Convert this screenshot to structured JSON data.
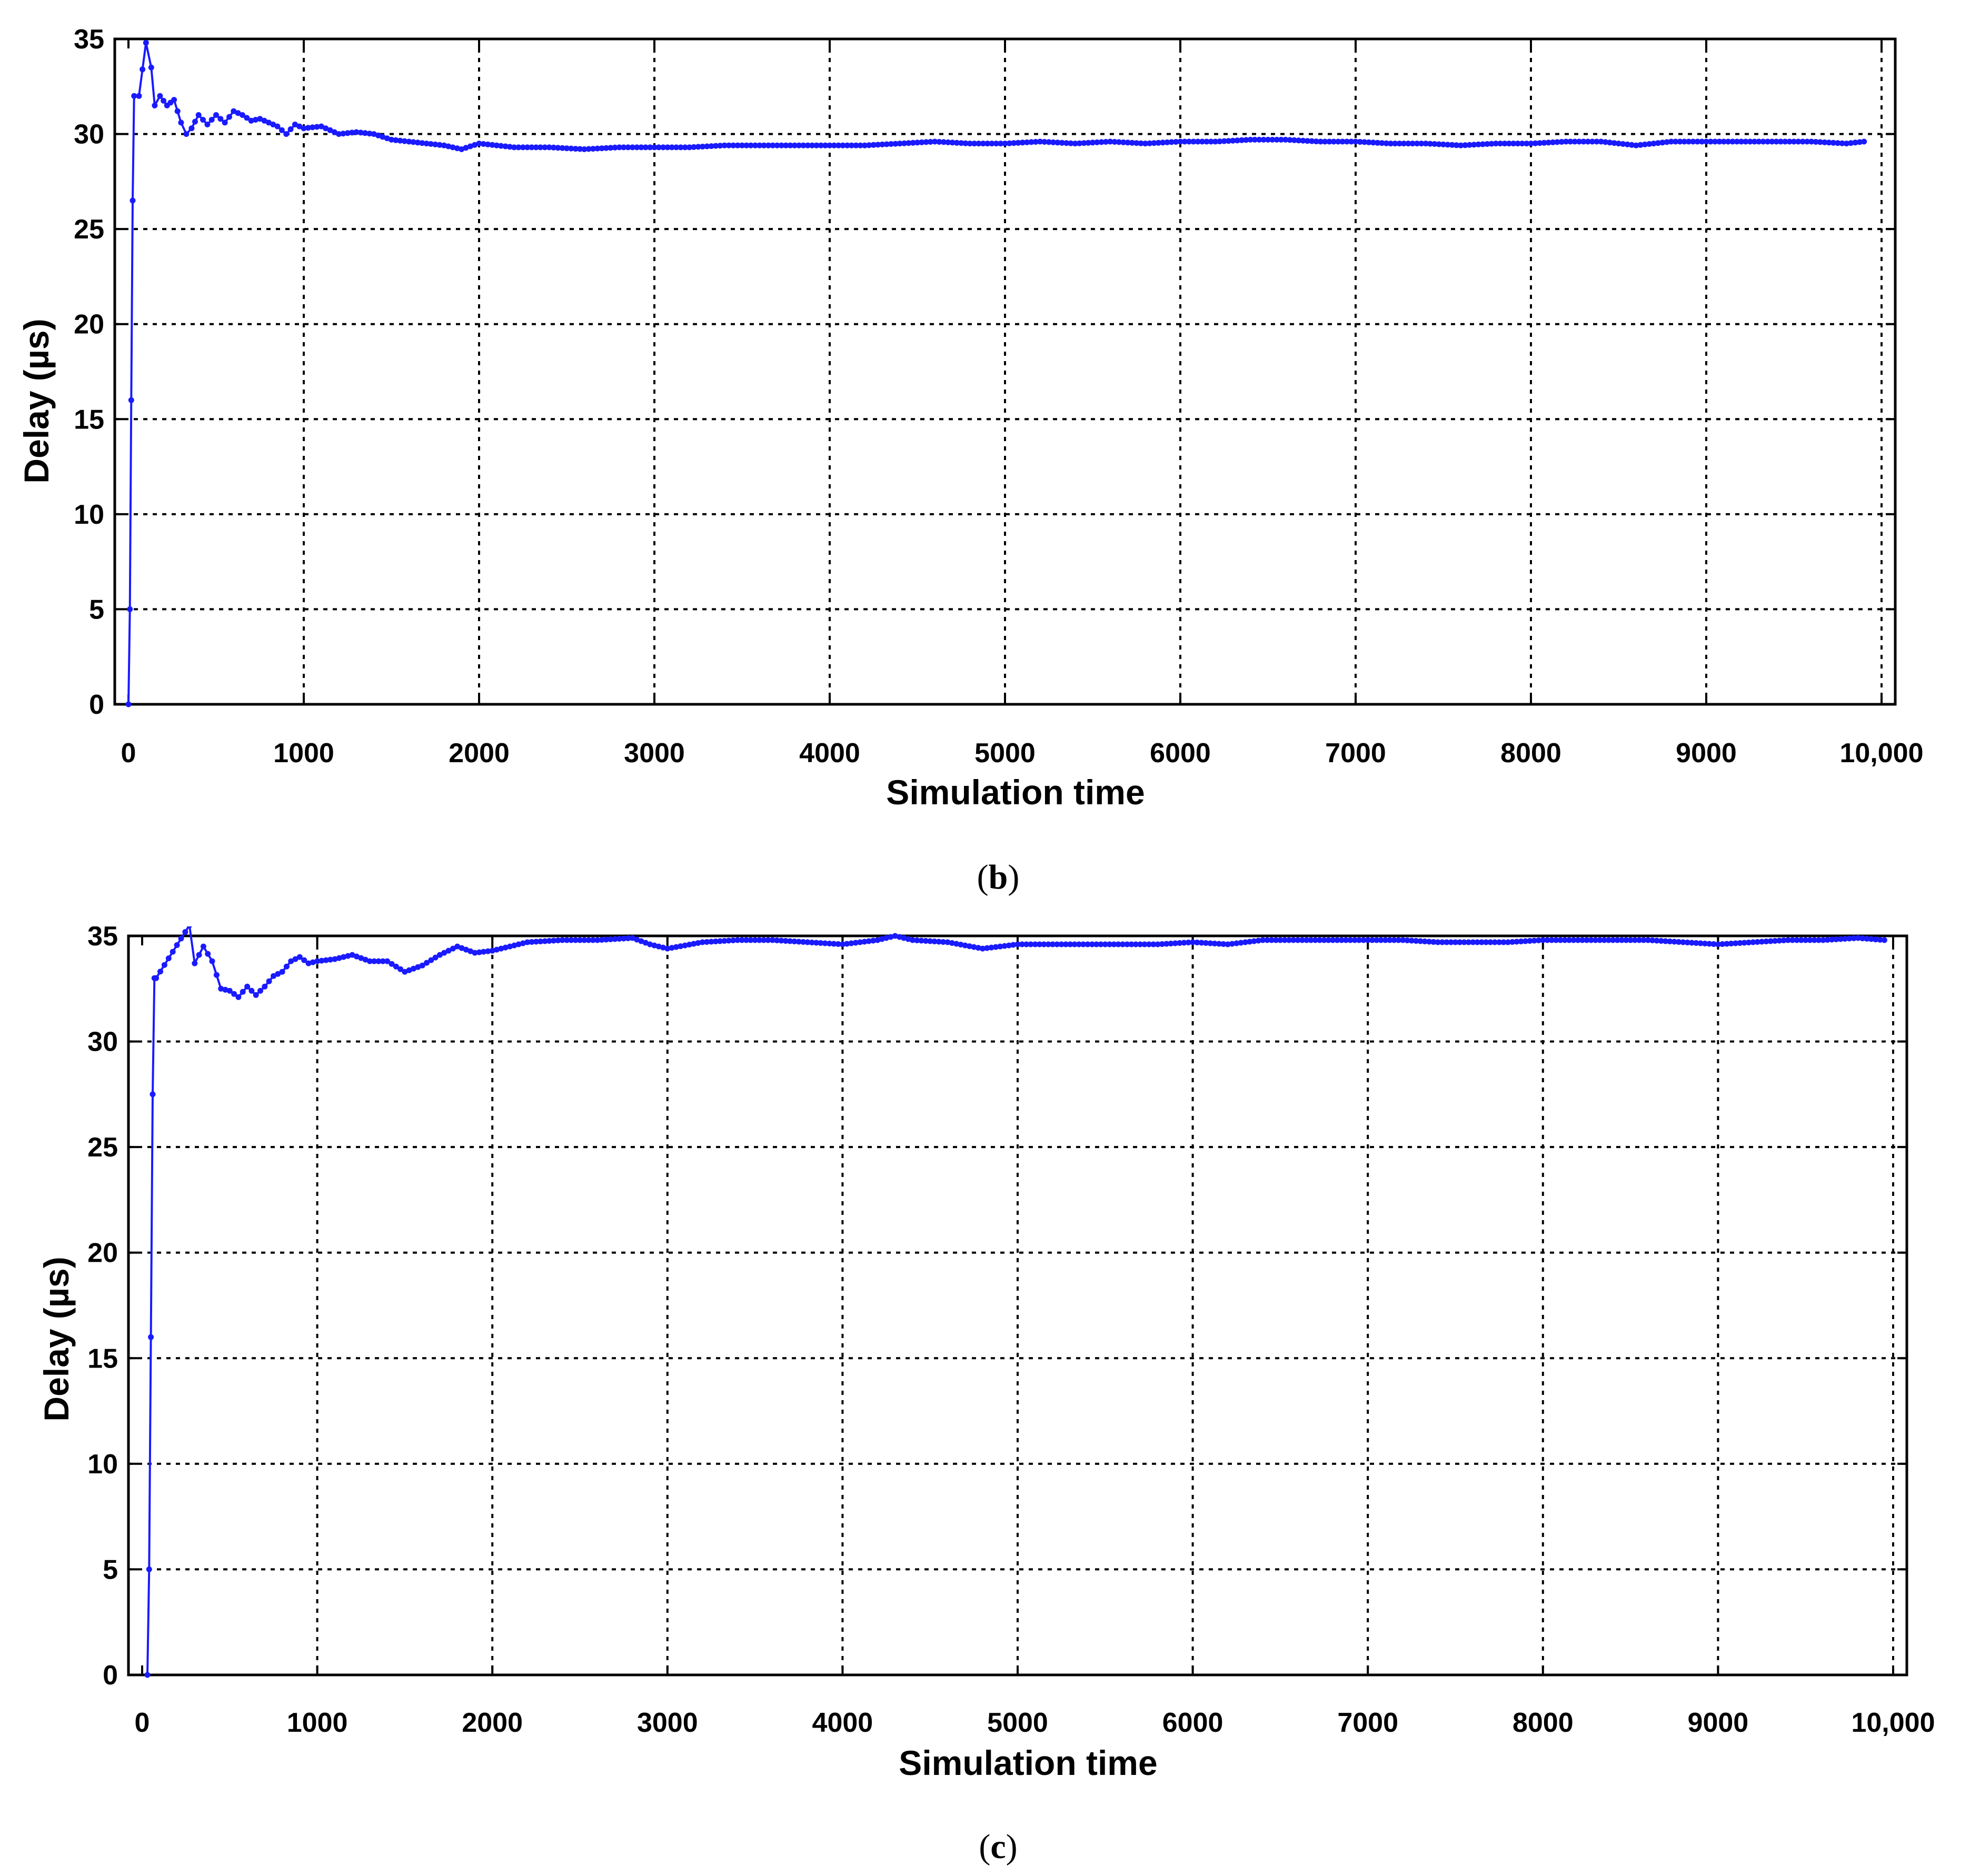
{
  "chart_data": [
    {
      "panel": "(b)",
      "panel_letter": "b",
      "type": "line",
      "xlabel": "Simulation time",
      "ylabel": "Delay (µs)",
      "xlim": [
        0,
        10000
      ],
      "ylim": [
        0,
        35
      ],
      "xticks": [
        0,
        1000,
        2000,
        3000,
        4000,
        5000,
        6000,
        7000,
        8000,
        9000,
        10000
      ],
      "xtick_labels": [
        "0",
        "1000",
        "2000",
        "3000",
        "4000",
        "5000",
        "6000",
        "7000",
        "8000",
        "9000",
        "10,000"
      ],
      "yticks": [
        0,
        5,
        10,
        15,
        20,
        25,
        30,
        35
      ],
      "ytick_labels": [
        "0",
        "5",
        "10",
        "15",
        "20",
        "25",
        "30",
        "35"
      ],
      "grid": true,
      "color": "#1a1aff",
      "x": [
        0,
        8,
        16,
        24,
        32,
        60,
        100,
        130,
        150,
        180,
        220,
        260,
        300,
        330,
        360,
        400,
        450,
        500,
        550,
        600,
        650,
        700,
        750,
        800,
        850,
        900,
        950,
        1000,
        1100,
        1200,
        1300,
        1400,
        1500,
        1600,
        1700,
        1800,
        1900,
        2000,
        2200,
        2400,
        2600,
        2800,
        3000,
        3200,
        3400,
        3600,
        3800,
        4000,
        4200,
        4400,
        4600,
        4800,
        5000,
        5200,
        5400,
        5600,
        5800,
        6000,
        6200,
        6400,
        6600,
        6800,
        7000,
        7200,
        7400,
        7600,
        7800,
        8000,
        8200,
        8400,
        8600,
        8800,
        9000,
        9200,
        9400,
        9600,
        9800,
        9900
      ],
      "y": [
        0,
        5,
        16,
        26.5,
        32,
        32,
        34.8,
        33.5,
        31.5,
        32,
        31.5,
        31.8,
        30.6,
        30,
        30.3,
        31,
        30.5,
        31,
        30.6,
        31.2,
        31,
        30.7,
        30.8,
        30.6,
        30.4,
        30,
        30.5,
        30.3,
        30.4,
        30,
        30.1,
        30,
        29.7,
        29.6,
        29.5,
        29.4,
        29.2,
        29.5,
        29.3,
        29.3,
        29.2,
        29.3,
        29.3,
        29.3,
        29.4,
        29.4,
        29.4,
        29.4,
        29.4,
        29.5,
        29.6,
        29.5,
        29.5,
        29.6,
        29.5,
        29.6,
        29.5,
        29.6,
        29.6,
        29.7,
        29.7,
        29.6,
        29.6,
        29.5,
        29.5,
        29.4,
        29.5,
        29.5,
        29.6,
        29.6,
        29.4,
        29.6,
        29.6,
        29.6,
        29.6,
        29.6,
        29.5,
        29.6
      ]
    },
    {
      "panel": "(c)",
      "panel_letter": "c",
      "type": "line",
      "xlabel": "Simulation time",
      "ylabel": "Delay (µs)",
      "xlim": [
        0,
        10000
      ],
      "ylim": [
        0,
        35
      ],
      "xticks": [
        0,
        1000,
        2000,
        3000,
        4000,
        5000,
        6000,
        7000,
        8000,
        9000,
        10000
      ],
      "xtick_labels": [
        "0",
        "1000",
        "2000",
        "3000",
        "4000",
        "5000",
        "6000",
        "7000",
        "8000",
        "9000",
        "10,000"
      ],
      "yticks": [
        0,
        5,
        10,
        15,
        20,
        25,
        30,
        35
      ],
      "ytick_labels": [
        "0",
        "5",
        "10",
        "15",
        "20",
        "25",
        "30",
        "35"
      ],
      "grid": true,
      "color": "#1a1aff",
      "x": [
        30,
        40,
        50,
        60,
        70,
        80,
        270,
        300,
        350,
        400,
        450,
        500,
        550,
        600,
        650,
        700,
        750,
        800,
        850,
        900,
        950,
        1000,
        1100,
        1200,
        1300,
        1400,
        1500,
        1600,
        1700,
        1800,
        1900,
        2000,
        2200,
        2400,
        2600,
        2800,
        2900,
        3000,
        3200,
        3400,
        3600,
        3800,
        4000,
        4200,
        4300,
        4400,
        4600,
        4800,
        5000,
        5200,
        5400,
        5600,
        5800,
        6000,
        6200,
        6400,
        6600,
        6800,
        7000,
        7200,
        7400,
        7600,
        7800,
        8000,
        8200,
        8400,
        8600,
        8800,
        9000,
        9200,
        9400,
        9600,
        9800,
        9950
      ],
      "y": [
        0,
        5,
        16,
        27.5,
        33,
        33,
        35.5,
        33.7,
        34.5,
        33.8,
        32.5,
        32.4,
        32.1,
        32.6,
        32.2,
        32.6,
        33.1,
        33.3,
        33.8,
        34,
        33.7,
        33.8,
        33.9,
        34.1,
        33.8,
        33.8,
        33.3,
        33.6,
        34.1,
        34.5,
        34.2,
        34.3,
        34.7,
        34.8,
        34.8,
        34.9,
        34.6,
        34.4,
        34.7,
        34.8,
        34.8,
        34.7,
        34.6,
        34.8,
        35,
        34.8,
        34.7,
        34.4,
        34.6,
        34.6,
        34.6,
        34.6,
        34.6,
        34.7,
        34.6,
        34.8,
        34.8,
        34.8,
        34.8,
        34.8,
        34.7,
        34.7,
        34.7,
        34.8,
        34.8,
        34.8,
        34.8,
        34.7,
        34.6,
        34.7,
        34.8,
        34.8,
        34.9,
        34.8
      ]
    }
  ]
}
